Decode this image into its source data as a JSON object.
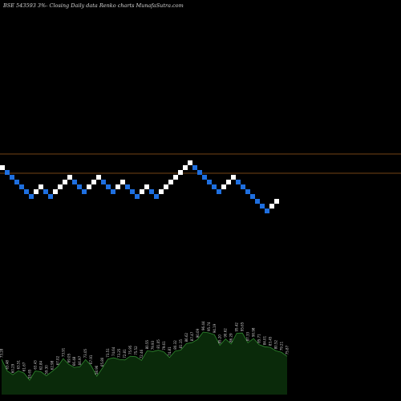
{
  "header": {
    "title": "BSE 543593 3%- Closing Daily data Renko charts MunafaSutra.com"
  },
  "chart_data": {
    "type": "renko",
    "title": "BSE 543593 3%- Closing Daily data Renko charts MunafaSutra.com",
    "colors": {
      "background": "#000000",
      "up_brick": "#ffffff",
      "down_brick": "#1e6fe0",
      "reference_line": "#9a5a1e",
      "volume_fill": "#0a2a0a",
      "volume_outline": "#2f8a2f"
    },
    "bricks": [
      "up",
      "down",
      "down",
      "down",
      "down",
      "down",
      "down",
      "up",
      "up",
      "down",
      "down",
      "up",
      "up",
      "up",
      "up",
      "down",
      "down",
      "down",
      "up",
      "up",
      "up",
      "down",
      "down",
      "down",
      "up",
      "up",
      "down",
      "down",
      "down",
      "up",
      "up",
      "down",
      "down",
      "up",
      "up",
      "up",
      "up",
      "up",
      "up",
      "up",
      "down",
      "down",
      "down",
      "down",
      "down",
      "down",
      "up",
      "up",
      "up",
      "down",
      "down",
      "down",
      "down",
      "down",
      "down",
      "down",
      "up",
      "up"
    ],
    "reference_lines": [
      "upper",
      "lower"
    ],
    "volume_labels": [
      "73.28",
      "63.48",
      "60.29",
      "63.51",
      "61.67",
      "55.65",
      "63.43",
      "62.84",
      "59.30",
      "62.98",
      "67.02",
      "73.91",
      "69.05",
      "66.48",
      "66.97",
      "73.05",
      "67.91",
      "58.96",
      "65.80",
      "73.51",
      "74.64",
      "73.25",
      "72.81",
      "75.95",
      "75.52",
      "72.46",
      "80.55",
      "79.93",
      "81.05",
      "79.61",
      "74.81",
      "80.32",
      "81.15",
      "86.62",
      "87.47",
      "90.09",
      "96.44",
      "95.74",
      "94.19",
      "85.20",
      "90.62",
      "86.29",
      "95.42",
      "95.65",
      "87.33",
      "90.98",
      "85.71",
      "84.01",
      "83.45",
      "80.52",
      "79.21",
      "75.87"
    ]
  }
}
